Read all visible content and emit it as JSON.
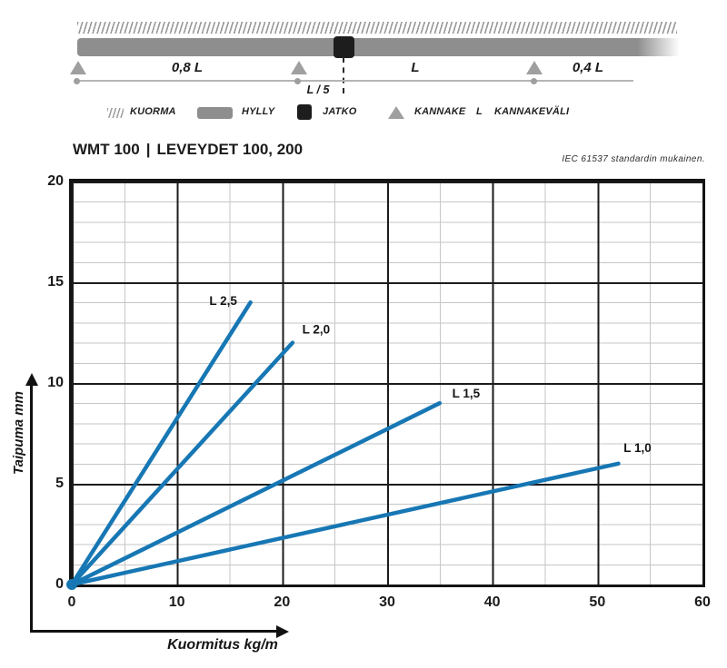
{
  "schematic": {
    "spans": [
      {
        "label": "0,8 L"
      },
      {
        "label": "L"
      },
      {
        "label": "0,4 L"
      }
    ],
    "joint_offset_label": "L / 5",
    "legend": [
      {
        "icon": "hatch",
        "label": "KUORMA"
      },
      {
        "icon": "bar",
        "label": "HYLLY"
      },
      {
        "icon": "square",
        "label": "JATKO"
      },
      {
        "icon": "triangle",
        "label": "KANNAKE"
      },
      {
        "icon": "letter",
        "symbol": "L",
        "label": "KANNAKEVÄLI"
      }
    ]
  },
  "header": {
    "product": "WMT 100",
    "divider": "|",
    "widths": "LEVEYDET 100, 200",
    "note": "IEC 61537 standardin mukainen."
  },
  "chart_data": {
    "type": "line",
    "title": "WMT 100 | LEVEYDET 100, 200",
    "xlabel": "Kuormitus kg/m",
    "ylabel": "Taipuma mm",
    "xlim": [
      0,
      60
    ],
    "ylim": [
      0,
      20
    ],
    "x_ticks": [
      0,
      10,
      20,
      30,
      40,
      50,
      60
    ],
    "y_ticks": [
      0,
      5,
      10,
      15,
      20
    ],
    "grid": {
      "major_x_step": 10,
      "major_y_step": 5,
      "minor_x_step": 5,
      "minor_y_step": 1,
      "grid_on": true
    },
    "legend_position": "inline-labels",
    "line_color": "#1777b4",
    "series": [
      {
        "name": "L 2,5",
        "points": [
          [
            0,
            0
          ],
          [
            17,
            14
          ]
        ],
        "label_offset": [
          -30,
          3
        ]
      },
      {
        "name": "L 2,0",
        "points": [
          [
            0,
            0
          ],
          [
            21,
            12
          ]
        ],
        "label_offset": [
          26,
          -10
        ]
      },
      {
        "name": "L 1,5",
        "points": [
          [
            0,
            0
          ],
          [
            35,
            9
          ]
        ],
        "label_offset": [
          29,
          -6
        ]
      },
      {
        "name": "L 1,0",
        "points": [
          [
            0,
            0
          ],
          [
            52,
            6
          ]
        ],
        "label_offset": [
          21,
          -13
        ]
      }
    ]
  }
}
